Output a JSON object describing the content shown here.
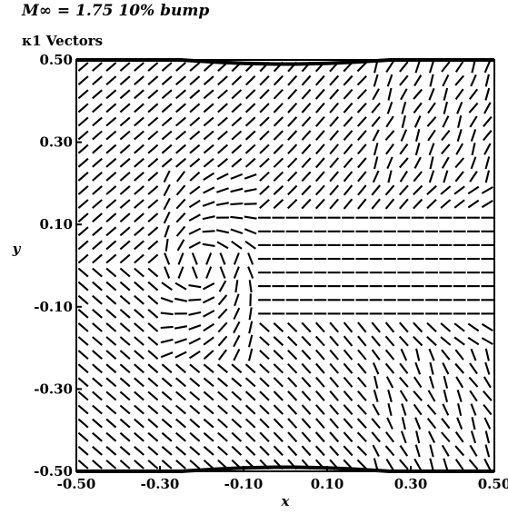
{
  "chart_data": {
    "type": "vector_field",
    "title": "M∞ = 1.75 10% bump",
    "subtitle": "κ1 Vectors",
    "xlabel": "x",
    "ylabel": "y",
    "xlim": [
      -0.5,
      0.5
    ],
    "ylim": [
      -0.5,
      0.5
    ],
    "x_ticks": [
      "-0.50",
      "-0.30",
      "-0.10",
      "0.10",
      "0.30",
      "0.50"
    ],
    "y_ticks": [
      "0.50",
      "0.30",
      "0.10",
      "-0.10",
      "-0.30",
      "-0.50"
    ],
    "grid": false,
    "field": "unit direction glyphs of the κ1 eigenvector over the channel",
    "grid_points": [
      30,
      30
    ]
  },
  "labels": {
    "title_line1": "M∞ = 1.75 10% bump",
    "title_line2": "κ1 Vectors"
  }
}
